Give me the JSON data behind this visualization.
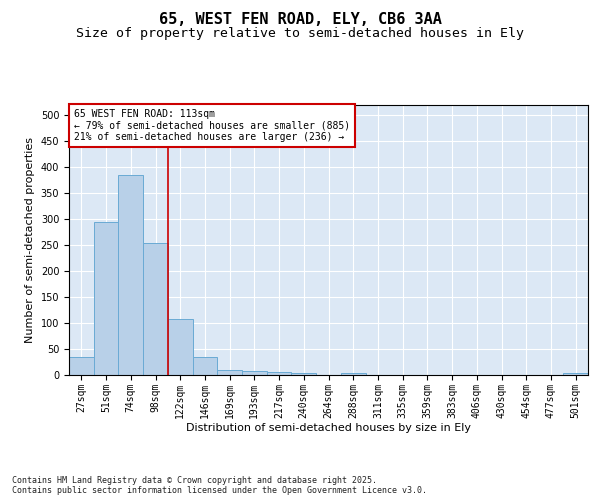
{
  "title1": "65, WEST FEN ROAD, ELY, CB6 3AA",
  "title2": "Size of property relative to semi-detached houses in Ely",
  "xlabel": "Distribution of semi-detached houses by size in Ely",
  "ylabel": "Number of semi-detached properties",
  "categories": [
    "27sqm",
    "51sqm",
    "74sqm",
    "98sqm",
    "122sqm",
    "146sqm",
    "169sqm",
    "193sqm",
    "217sqm",
    "240sqm",
    "264sqm",
    "288sqm",
    "311sqm",
    "335sqm",
    "359sqm",
    "383sqm",
    "406sqm",
    "430sqm",
    "454sqm",
    "477sqm",
    "501sqm"
  ],
  "values": [
    35,
    295,
    385,
    255,
    108,
    35,
    10,
    8,
    5,
    3,
    0,
    3,
    0,
    0,
    0,
    0,
    0,
    0,
    0,
    0,
    3
  ],
  "bar_color": "#b8d0e8",
  "bar_edge_color": "#6aaad4",
  "vline_x": 3.5,
  "vline_color": "#cc0000",
  "annotation_text": "65 WEST FEN ROAD: 113sqm\n← 79% of semi-detached houses are smaller (885)\n21% of semi-detached houses are larger (236) →",
  "annotation_box_color": "#cc0000",
  "ylim": [
    0,
    520
  ],
  "yticks": [
    0,
    50,
    100,
    150,
    200,
    250,
    300,
    350,
    400,
    450,
    500
  ],
  "bg_color": "#dce8f5",
  "footer": "Contains HM Land Registry data © Crown copyright and database right 2025.\nContains public sector information licensed under the Open Government Licence v3.0.",
  "title1_fontsize": 11,
  "title2_fontsize": 9.5,
  "tick_fontsize": 7,
  "label_fontsize": 8,
  "annot_fontsize": 7,
  "footer_fontsize": 6
}
